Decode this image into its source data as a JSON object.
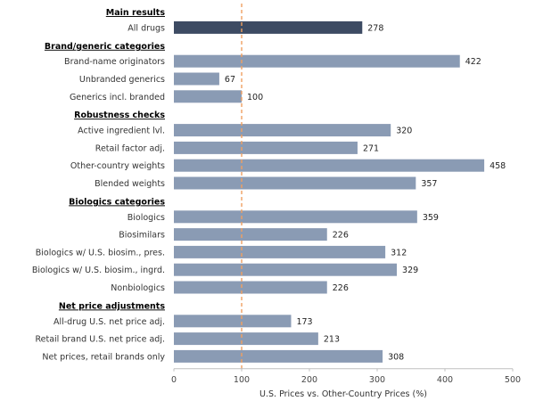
{
  "chart_data": {
    "type": "bar",
    "orientation": "horizontal",
    "xlabel": "U.S. Prices vs. Other-Country Prices (%)",
    "ylabel": "",
    "xlim": [
      0,
      500
    ],
    "xticks": [
      0,
      100,
      200,
      300,
      400,
      500
    ],
    "reference_line": 100,
    "grid": false,
    "groups": [
      {
        "name": "Main results",
        "items": [
          {
            "label": "All drugs",
            "value": 278,
            "highlight": true
          }
        ]
      },
      {
        "name": "Brand/generic categories",
        "items": [
          {
            "label": "Brand-name originators",
            "value": 422
          },
          {
            "label": "Unbranded generics",
            "value": 67
          },
          {
            "label": "Generics incl. branded",
            "value": 100
          }
        ]
      },
      {
        "name": "Robustness checks",
        "items": [
          {
            "label": "Active ingredient lvl.",
            "value": 320
          },
          {
            "label": "Retail factor adj.",
            "value": 271
          },
          {
            "label": "Other-country weights",
            "value": 458
          },
          {
            "label": "Blended weights",
            "value": 357
          }
        ]
      },
      {
        "name": "Biologics categories",
        "items": [
          {
            "label": "Biologics",
            "value": 359
          },
          {
            "label": "Biosimilars",
            "value": 226
          },
          {
            "label": "Biologics w/ U.S. biosim., pres.",
            "value": 312
          },
          {
            "label": "Biologics w/ U.S. biosim., ingrd.",
            "value": 329
          },
          {
            "label": "Nonbiologics",
            "value": 226
          }
        ]
      },
      {
        "name": "Net price adjustments",
        "items": [
          {
            "label": "All-drug U.S. net price adj.",
            "value": 173
          },
          {
            "label": "Retail brand U.S. net price adj.",
            "value": 213
          },
          {
            "label": "Net prices, retail brands only",
            "value": 308
          }
        ]
      }
    ],
    "colors": {
      "bar": "#8a9bb4",
      "highlight_bar": "#3d4b63",
      "reference_line": "#f0a060",
      "axis": "#bfbfbf"
    }
  }
}
